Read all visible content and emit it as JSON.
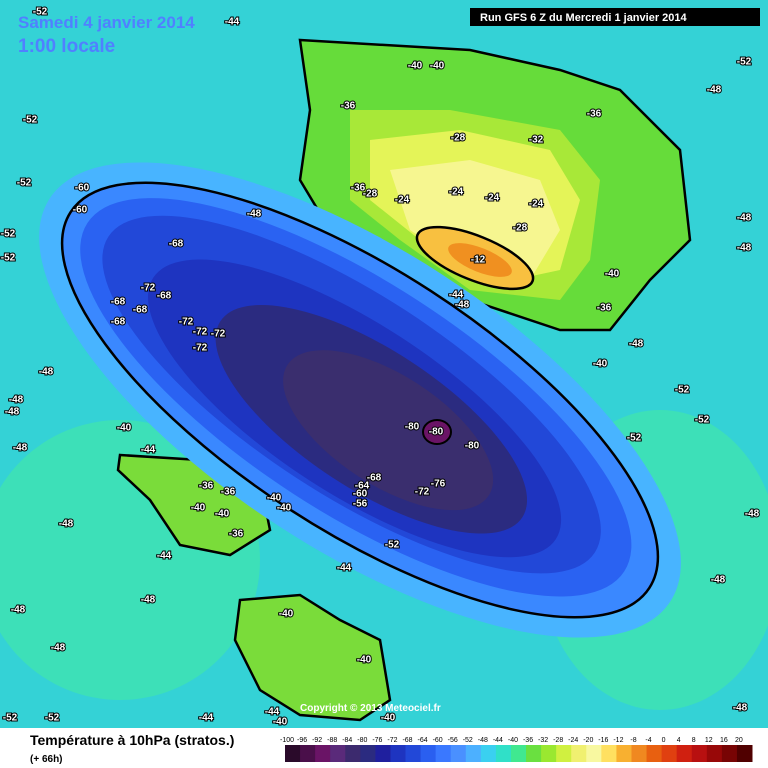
{
  "header": {
    "date": "Samedi 4 janvier 2014",
    "time": "1:00 locale",
    "run": "Run GFS 6 Z du Mercredi 1 janvier 2014"
  },
  "copyright": "Copyright © 2013 Meteociel.fr",
  "footer": {
    "title": "Température à 10hPa (stratos.)",
    "subtitle": "(+ 66h)"
  },
  "colorbar": {
    "labels": [
      -100,
      -96,
      -92,
      -88,
      -84,
      -80,
      -76,
      -72,
      -68,
      -64,
      -60,
      -56,
      -52,
      -48,
      -44,
      -40,
      -36,
      -32,
      -28,
      -24,
      -20,
      -16,
      -12,
      -8,
      -4,
      0,
      4,
      8,
      12,
      16,
      20
    ],
    "colors": [
      "#2a0a2a",
      "#4a0f4a",
      "#6a1466",
      "#5a2a7a",
      "#3c2a6e",
      "#2b2b80",
      "#1f1f9e",
      "#1e34c0",
      "#2248d8",
      "#2a5ff0",
      "#3a78ff",
      "#4a90ff",
      "#4cb0ff",
      "#3ad0f0",
      "#30e0c8",
      "#40e890",
      "#6ae040",
      "#9ae830",
      "#d0f040",
      "#f0f070",
      "#f8f8a0",
      "#ffe060",
      "#f8b030",
      "#f08820",
      "#e86010",
      "#e04010",
      "#d02010",
      "#b81010",
      "#980808",
      "#780404",
      "#500000"
    ]
  },
  "contour_labels": [
    -52,
    -44,
    -40,
    -40,
    -52,
    -48,
    -52,
    -36,
    -36,
    -28,
    -32,
    -52,
    -60,
    -60,
    -36,
    -28,
    -24,
    -24,
    -24,
    -24,
    -48,
    -68,
    -28,
    -48,
    -52,
    -48,
    -52,
    -72,
    -68,
    -68,
    -68,
    -68,
    -72,
    -72,
    -72,
    -72,
    -12,
    -40,
    -44,
    -48,
    -36,
    -40,
    -48,
    -48,
    -48,
    -48,
    -52,
    -52,
    -52,
    -40,
    -44,
    -48,
    -80,
    -80,
    -80,
    -36,
    -36,
    -68,
    -64,
    -60,
    -56,
    -72,
    -76,
    -40,
    -40,
    -40,
    -40,
    -48,
    -36,
    -44,
    -52,
    -48,
    -48,
    -48,
    -48,
    -40,
    -48,
    -44,
    -40,
    -40,
    -52,
    -52,
    -44,
    -44,
    -40,
    -48
  ]
}
